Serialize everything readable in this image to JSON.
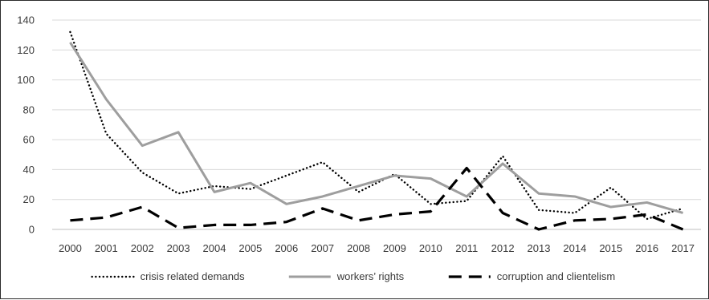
{
  "chart_data": {
    "type": "line",
    "title": "",
    "xlabel": "",
    "ylabel": "",
    "categories": [
      "2000",
      "2001",
      "2002",
      "2003",
      "2004",
      "2005",
      "2006",
      "2007",
      "2008",
      "2009",
      "2010",
      "2011",
      "2012",
      "2013",
      "2014",
      "2015",
      "2016",
      "2017"
    ],
    "ylim": [
      0,
      140
    ],
    "yticks": [
      0,
      20,
      40,
      60,
      80,
      100,
      120,
      140
    ],
    "grid": "horizontal",
    "legend_position": "bottom",
    "series": [
      {
        "name": "crisis related demands",
        "style": "dotted",
        "color": "#000000",
        "values": [
          132,
          64,
          38,
          24,
          29,
          27,
          36,
          45,
          25,
          37,
          17,
          19,
          49,
          13,
          11,
          28,
          7,
          14
        ]
      },
      {
        "name": "workers’ rights",
        "style": "solid",
        "color": "#9e9e9e",
        "values": [
          125,
          87,
          56,
          65,
          25,
          31,
          17,
          22,
          29,
          36,
          34,
          22,
          44,
          24,
          22,
          15,
          18,
          11
        ]
      },
      {
        "name": "corruption and clientelism",
        "style": "dashed",
        "color": "#000000",
        "values": [
          6,
          8,
          15,
          1,
          3,
          3,
          5,
          14,
          6,
          10,
          12,
          41,
          11,
          0,
          6,
          7,
          10,
          0
        ]
      }
    ]
  }
}
